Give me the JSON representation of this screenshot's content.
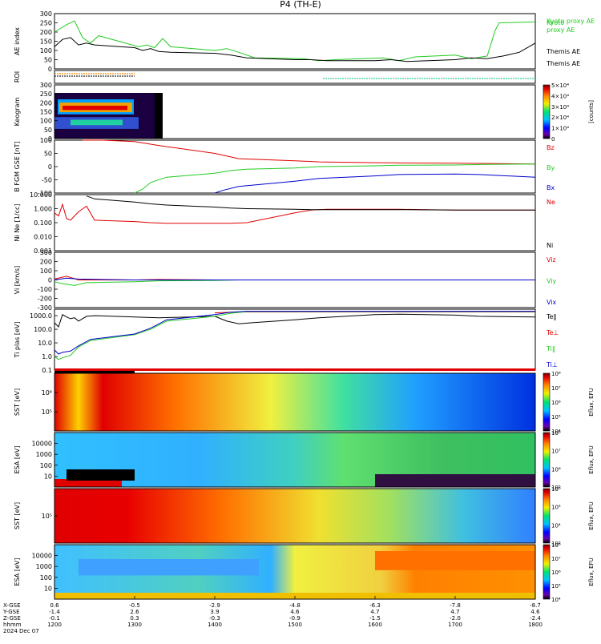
{
  "title": "P4 (TH-E)",
  "date_label": "2024 Dec 07",
  "x_axis": {
    "row_labels": [
      "X-GSE",
      "Y-GSE",
      "Z-GSE",
      "hhmm"
    ],
    "ticks": [
      {
        "xgse": "0.6",
        "ygse": "-1.4",
        "zgse": "-0.1",
        "time": "1200"
      },
      {
        "xgse": "-0.5",
        "ygse": "2.6",
        "zgse": "0.3",
        "time": "1300"
      },
      {
        "xgse": "-2.9",
        "ygse": "3.9",
        "zgse": "-0.3",
        "time": "1400"
      },
      {
        "xgse": "-4.8",
        "ygse": "4.6",
        "zgse": "-0.9",
        "time": "1500"
      },
      {
        "xgse": "-6.3",
        "ygse": "4.7",
        "zgse": "-1.5",
        "time": "1600"
      },
      {
        "xgse": "-7.8",
        "ygse": "4.7",
        "zgse": "-2.0",
        "time": "1700"
      },
      {
        "xgse": "-8.7",
        "ygse": "4.6",
        "zgse": "-2.4",
        "time": "1800"
      }
    ]
  },
  "colors": {
    "red": "#e00000",
    "green": "#22cc22",
    "blue": "#0000cc",
    "black": "#000000",
    "orange": "#ff8800",
    "cyan": "#33cc99"
  },
  "chart_data": [
    {
      "type": "line",
      "ylabel": "AE index",
      "ylim": [
        0,
        300
      ],
      "yticks": [
        "0",
        "50",
        "100",
        "150",
        "200",
        "250",
        "300"
      ],
      "legend": [
        "Kyoto",
        "proxy AE",
        "Themis AE"
      ],
      "series": [
        {
          "name": "Kyoto proxy AE",
          "color": "#22cc22",
          "x": [
            1200,
            1215,
            1225,
            1235,
            1245,
            1255,
            1305,
            1315,
            1325,
            1335,
            1345,
            1400,
            1415,
            1430,
            1450,
            1510,
            1530,
            1550,
            1610,
            1630,
            1650,
            1700,
            1720,
            1740,
            1750,
            1755,
            1800
          ],
          "y": [
            200,
            240,
            260,
            170,
            140,
            180,
            120,
            130,
            115,
            165,
            120,
            100,
            110,
            90,
            60,
            55,
            45,
            50,
            60,
            45,
            65,
            75,
            55,
            70,
            210,
            250,
            255
          ]
        },
        {
          "name": "Themis AE",
          "color": "#000000",
          "x": [
            1200,
            1210,
            1220,
            1230,
            1240,
            1250,
            1300,
            1310,
            1320,
            1330,
            1345,
            1400,
            1420,
            1440,
            1500,
            1520,
            1540,
            1600,
            1620,
            1640,
            1700,
            1720,
            1740,
            1760,
            1780,
            1800
          ],
          "y": [
            120,
            160,
            170,
            130,
            140,
            130,
            115,
            100,
            110,
            95,
            90,
            85,
            75,
            60,
            50,
            50,
            45,
            45,
            50,
            40,
            50,
            60,
            55,
            70,
            90,
            140
          ]
        }
      ]
    },
    {
      "type": "bar",
      "ylabel": "ROI",
      "yticks": [],
      "series": [
        {
          "name": "orange",
          "color": "#ff8800",
          "x": [
            1200,
            1300
          ]
        },
        {
          "name": "dark",
          "color": "#333333",
          "x": [
            1200,
            1300
          ]
        },
        {
          "name": "cyan",
          "color": "#33cc99",
          "x": [
            1535,
            1800
          ]
        }
      ]
    },
    {
      "type": "heatmap",
      "ylabel": "Keogram",
      "ylim": [
        0,
        300
      ],
      "yticks": [
        "0",
        "50",
        "100",
        "150",
        "200",
        "250",
        "300"
      ],
      "colorbar": {
        "label": "[counts]",
        "ticks": [
          "0",
          "1×10⁴",
          "2×10⁴",
          "3×10⁴",
          "4×10⁴",
          "5×10⁴"
        ]
      },
      "x_range": [
        1200,
        1335
      ]
    },
    {
      "type": "line",
      "ylabel": "B FGM GSE [nT]",
      "ylim": [
        -100,
        100
      ],
      "yticks": [
        "-100",
        "-50",
        "0",
        "50",
        "100"
      ],
      "series": [
        {
          "name": "Bz",
          "color": "#e00000",
          "x": [
            1235,
            1240,
            1260,
            1300,
            1330,
            1400,
            1430,
            1500,
            1530,
            1600,
            1630,
            1700,
            1730,
            1800
          ],
          "y": [
            120,
            110,
            100,
            95,
            80,
            50,
            30,
            22,
            18,
            15,
            14,
            13,
            12,
            10
          ]
        },
        {
          "name": "By",
          "color": "#22cc22",
          "x": [
            1300,
            1310,
            1320,
            1340,
            1400,
            1420,
            1440,
            1500,
            1530,
            1600,
            1630,
            1700,
            1730,
            1800
          ],
          "y": [
            -100,
            -85,
            -60,
            -40,
            -25,
            -15,
            -10,
            -5,
            0,
            3,
            5,
            6,
            8,
            10
          ]
        },
        {
          "name": "Bx",
          "color": "#0000cc",
          "x": [
            1400,
            1410,
            1430,
            1500,
            1530,
            1600,
            1630,
            1700,
            1730,
            1800
          ],
          "y": [
            -100,
            -90,
            -75,
            -55,
            -45,
            -35,
            -30,
            -28,
            -30,
            -40
          ]
        }
      ]
    },
    {
      "type": "line",
      "ylabel": "Ni Ne [1/cc]",
      "ylog": true,
      "ylim": [
        0.001,
        10
      ],
      "yticks": [
        "0.001",
        "0.010",
        "0.100",
        "1.000",
        "10.000"
      ],
      "series": [
        {
          "name": "Ne",
          "color": "#e00000",
          "x": [
            1200,
            1205,
            1210,
            1215,
            1220,
            1230,
            1240,
            1250,
            1300,
            1320,
            1340,
            1400,
            1420,
            1440,
            1500,
            1520,
            1540,
            1600,
            1630,
            1700,
            1730,
            1800
          ],
          "y": [
            0.5,
            0.3,
            2.0,
            0.2,
            0.15,
            0.6,
            1.5,
            0.15,
            0.12,
            0.1,
            0.09,
            0.09,
            0.09,
            0.1,
            0.5,
            0.8,
            0.9,
            0.9,
            0.9,
            0.8,
            0.8,
            0.8
          ]
        },
        {
          "name": "Ni",
          "color": "#000000",
          "x": [
            1240,
            1250,
            1300,
            1320,
            1340,
            1400,
            1420,
            1440,
            1500,
            1520,
            1540,
            1600,
            1630,
            1700,
            1730,
            1800
          ],
          "y": [
            8,
            5,
            3,
            2.2,
            1.8,
            1.3,
            1.1,
            1.0,
            0.9,
            0.85,
            0.85,
            0.85,
            0.85,
            0.8,
            0.8,
            0.8
          ]
        }
      ]
    },
    {
      "type": "line",
      "ylabel": "Vi [km/s]",
      "ylim": [
        -300,
        300
      ],
      "yticks": [
        "-300",
        "-200",
        "-100",
        "0",
        "100",
        "200",
        "300"
      ],
      "series": [
        {
          "name": "Viz",
          "color": "#e00000",
          "x": [
            1200,
            1215,
            1230,
            1300,
            1330,
            1400,
            1430,
            1500,
            1530,
            1600,
            1630,
            1700,
            1730,
            1800
          ],
          "y": [
            10,
            40,
            0,
            0,
            5,
            0,
            0,
            0,
            0,
            0,
            0,
            0,
            0,
            0
          ]
        },
        {
          "name": "Viy",
          "color": "#22cc22",
          "x": [
            1200,
            1210,
            1225,
            1240,
            1300,
            1330,
            1400,
            1430,
            1500,
            1530,
            1600,
            1630,
            1700,
            1730,
            1800
          ],
          "y": [
            -20,
            -40,
            -60,
            -30,
            -20,
            -10,
            -5,
            0,
            0,
            0,
            0,
            0,
            0,
            0,
            0
          ]
        },
        {
          "name": "Vix",
          "color": "#0000cc",
          "x": [
            1200,
            1215,
            1230,
            1300,
            1330,
            1400,
            1430,
            1500,
            1530,
            1600,
            1630,
            1700,
            1730,
            1800
          ],
          "y": [
            0,
            20,
            10,
            0,
            0,
            0,
            0,
            0,
            0,
            0,
            0,
            0,
            0,
            0
          ]
        }
      ]
    },
    {
      "type": "line",
      "ylabel": "Ti plas [eV]",
      "ylog": true,
      "ylim": [
        0.1,
        3000
      ],
      "yticks": [
        "0.1",
        "1.0",
        "10.0",
        "100.0",
        "1000.0"
      ],
      "legend": [
        "Te‖",
        "Te⊥",
        "Ti‖",
        "Ti⊥"
      ],
      "series": [
        {
          "name": "Te‖",
          "color": "#000000",
          "x": [
            1200,
            1205,
            1210,
            1215,
            1220,
            1225,
            1230,
            1240,
            1250,
            1300,
            1330,
            1400,
            1415,
            1430,
            1445,
            1500,
            1530,
            1600,
            1630,
            1700,
            1730,
            1800
          ],
          "y": [
            300,
            150,
            1200,
            800,
            600,
            700,
            400,
            900,
            1000,
            800,
            700,
            900,
            400,
            250,
            300,
            500,
            700,
            1200,
            1300,
            1100,
            900,
            800
          ]
        },
        {
          "name": "Te⊥",
          "color": "#e00000",
          "x": [
            1400,
            1420,
            1440,
            1500,
            1530,
            1600,
            1630,
            1700,
            1730,
            1800
          ],
          "y": [
            1600,
            1800,
            1900,
            1900,
            1900,
            1900,
            1900,
            1900,
            1900,
            1900
          ]
        },
        {
          "name": "Ti‖",
          "color": "#22cc22",
          "x": [
            1200,
            1205,
            1210,
            1220,
            1230,
            1245,
            1300,
            1320,
            1340,
            1400,
            1420,
            1440,
            1500,
            1530,
            1600,
            1630,
            1700,
            1730,
            1800
          ],
          "y": [
            1.0,
            0.6,
            0.8,
            1.2,
            5,
            15,
            40,
            100,
            400,
            900,
            1500,
            2000,
            2000,
            2000,
            2000,
            2000,
            2000,
            2000,
            2000
          ]
        },
        {
          "name": "Ti⊥",
          "color": "#0000cc",
          "x": [
            1200,
            1205,
            1210,
            1220,
            1230,
            1245,
            1300,
            1320,
            1340,
            1400,
            1420,
            1440,
            1500,
            1530,
            1600,
            1630,
            1700,
            1730,
            1800
          ],
          "y": [
            3.0,
            1.5,
            2.0,
            2.5,
            6,
            18,
            45,
            120,
            500,
            1200,
            1800,
            2100,
            2100,
            2100,
            2100,
            2100,
            2100,
            2100,
            2100
          ]
        }
      ]
    },
    {
      "type": "heatmap",
      "ylabel": "SST [eV]",
      "ylog": true,
      "yticks": [
        "10⁵",
        "10⁶"
      ],
      "colorbar": {
        "label": "Eflux, EFU",
        "ticks": [
          "10⁴",
          "10⁵",
          "10⁶",
          "10⁷",
          "10⁸"
        ]
      }
    },
    {
      "type": "heatmap",
      "ylabel": "ESA [eV]",
      "ylog": true,
      "yticks": [
        "10",
        "100",
        "1000",
        "10000"
      ],
      "colorbar": {
        "label": "Eflux, EFU",
        "ticks": [
          "10⁵",
          "10⁶",
          "10⁷",
          "10⁸"
        ]
      }
    },
    {
      "type": "heatmap",
      "ylabel": "SST [eV]",
      "ylog": true,
      "yticks": [
        "10⁵"
      ],
      "colorbar": {
        "label": "Eflux, EFU",
        "ticks": [
          "10³",
          "10⁴",
          "10⁵",
          "10⁶"
        ]
      }
    },
    {
      "type": "heatmap",
      "ylabel": "ESA [eV]",
      "ylog": true,
      "yticks": [
        "10",
        "100",
        "1000",
        "10000"
      ],
      "colorbar": {
        "label": "Eflux, EFU",
        "ticks": [
          "10⁴",
          "10⁵",
          "10⁶",
          "10⁷",
          "10⁸"
        ]
      }
    }
  ]
}
